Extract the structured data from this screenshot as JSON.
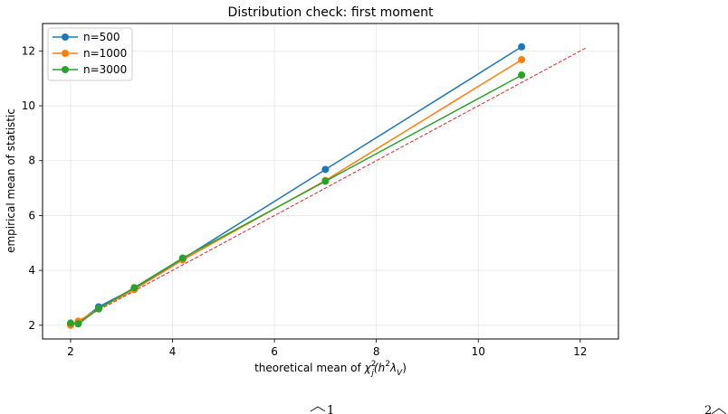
{
  "chart_data": {
    "type": "line",
    "title": "Distribution check: first moment",
    "xlabel": "theoretical mean of χ²_j(h²λ_V)",
    "xlabel_parts": {
      "prefix": "theoretical mean of ",
      "chi": "χ",
      "sup2": "2",
      "sub_j": "j",
      "paren_open": "(h",
      "h_sup": "2",
      "lambda": "λ",
      "sub_v": "V",
      "paren_close": ")"
    },
    "ylabel": "empirical mean of statistic",
    "xlim": [
      1.45,
      12.75
    ],
    "ylim": [
      1.5,
      13.0
    ],
    "xticks": [
      2,
      4,
      6,
      8,
      10,
      12
    ],
    "yticks": [
      2,
      4,
      6,
      8,
      10,
      12
    ],
    "grid": true,
    "legend_position": "top-left",
    "series": [
      {
        "name": "n=500",
        "color": "#1f77b4",
        "x": [
          2.0,
          2.15,
          2.55,
          3.25,
          4.2,
          7.0,
          10.85
        ],
        "y": [
          2.05,
          2.1,
          2.67,
          3.35,
          4.42,
          7.68,
          12.15
        ]
      },
      {
        "name": "n=1000",
        "color": "#ff7f0e",
        "x": [
          2.0,
          2.15,
          2.55,
          3.25,
          4.2,
          7.0,
          10.85
        ],
        "y": [
          2.0,
          2.15,
          2.6,
          3.3,
          4.38,
          7.28,
          11.68
        ]
      },
      {
        "name": "n=3000",
        "color": "#2ca02c",
        "x": [
          2.0,
          2.15,
          2.55,
          3.25,
          4.2,
          7.0,
          10.85
        ],
        "y": [
          2.08,
          2.05,
          2.6,
          3.37,
          4.45,
          7.25,
          11.12
        ]
      }
    ],
    "reference_line": {
      "style": "dashed",
      "color": "#d62728",
      "x": [
        2.0,
        12.1
      ],
      "y": [
        2.0,
        12.1
      ]
    }
  }
}
